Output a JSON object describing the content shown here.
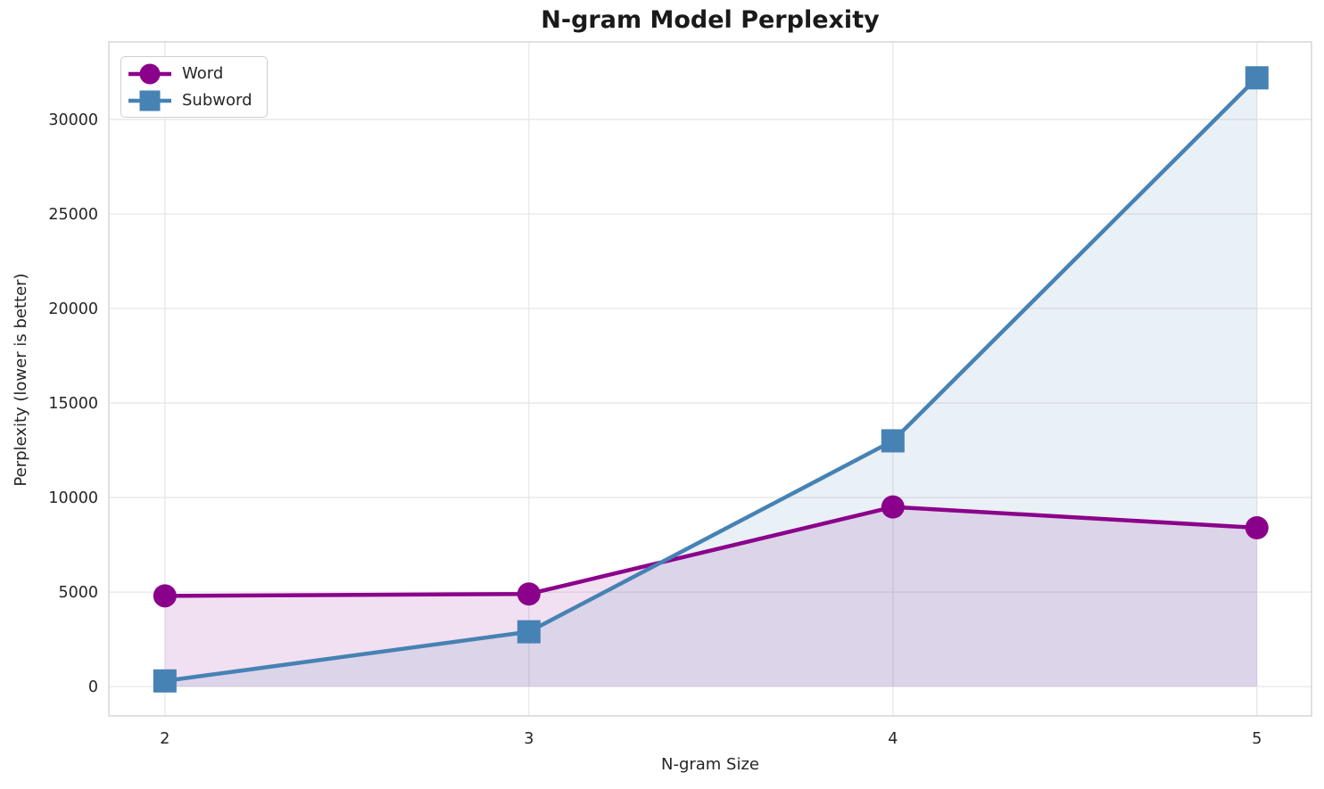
{
  "chart_data": {
    "type": "line",
    "title": "N-gram Model Perplexity",
    "xlabel": "N-gram Size",
    "ylabel": "Perplexity (lower is better)",
    "x": [
      2,
      3,
      4,
      5
    ],
    "series": [
      {
        "name": "Word",
        "color": "#8B008B",
        "marker": "circle",
        "values": [
          4800,
          4900,
          9500,
          8400
        ]
      },
      {
        "name": "Subword",
        "color": "#4682B4",
        "marker": "square",
        "values": [
          300,
          2900,
          13000,
          32200
        ]
      }
    ],
    "xticks": [
      2,
      3,
      4,
      5
    ],
    "yticks": [
      0,
      5000,
      10000,
      15000,
      20000,
      25000,
      30000
    ],
    "xtick_labels": [
      "2",
      "3",
      "4",
      "5"
    ],
    "ytick_labels": [
      "0",
      "5000",
      "10000",
      "15000",
      "20000",
      "25000",
      "30000"
    ],
    "xlim": [
      1.846,
      5.15
    ],
    "ylim": [
      -1550,
      34100
    ],
    "grid": true,
    "area_fill": true,
    "area_opacity": 0.12,
    "area_baseline": 0,
    "legend": {
      "position": "upper-left",
      "entries": [
        "Word",
        "Subword"
      ]
    }
  },
  "style": {
    "background": "#ffffff",
    "grid_color": "#e7e7e7",
    "spine_color": "#d5d5d5",
    "text_color": "#262626",
    "title_color": "#1a1a1a",
    "line_width": 4.5,
    "marker_size": 26
  }
}
